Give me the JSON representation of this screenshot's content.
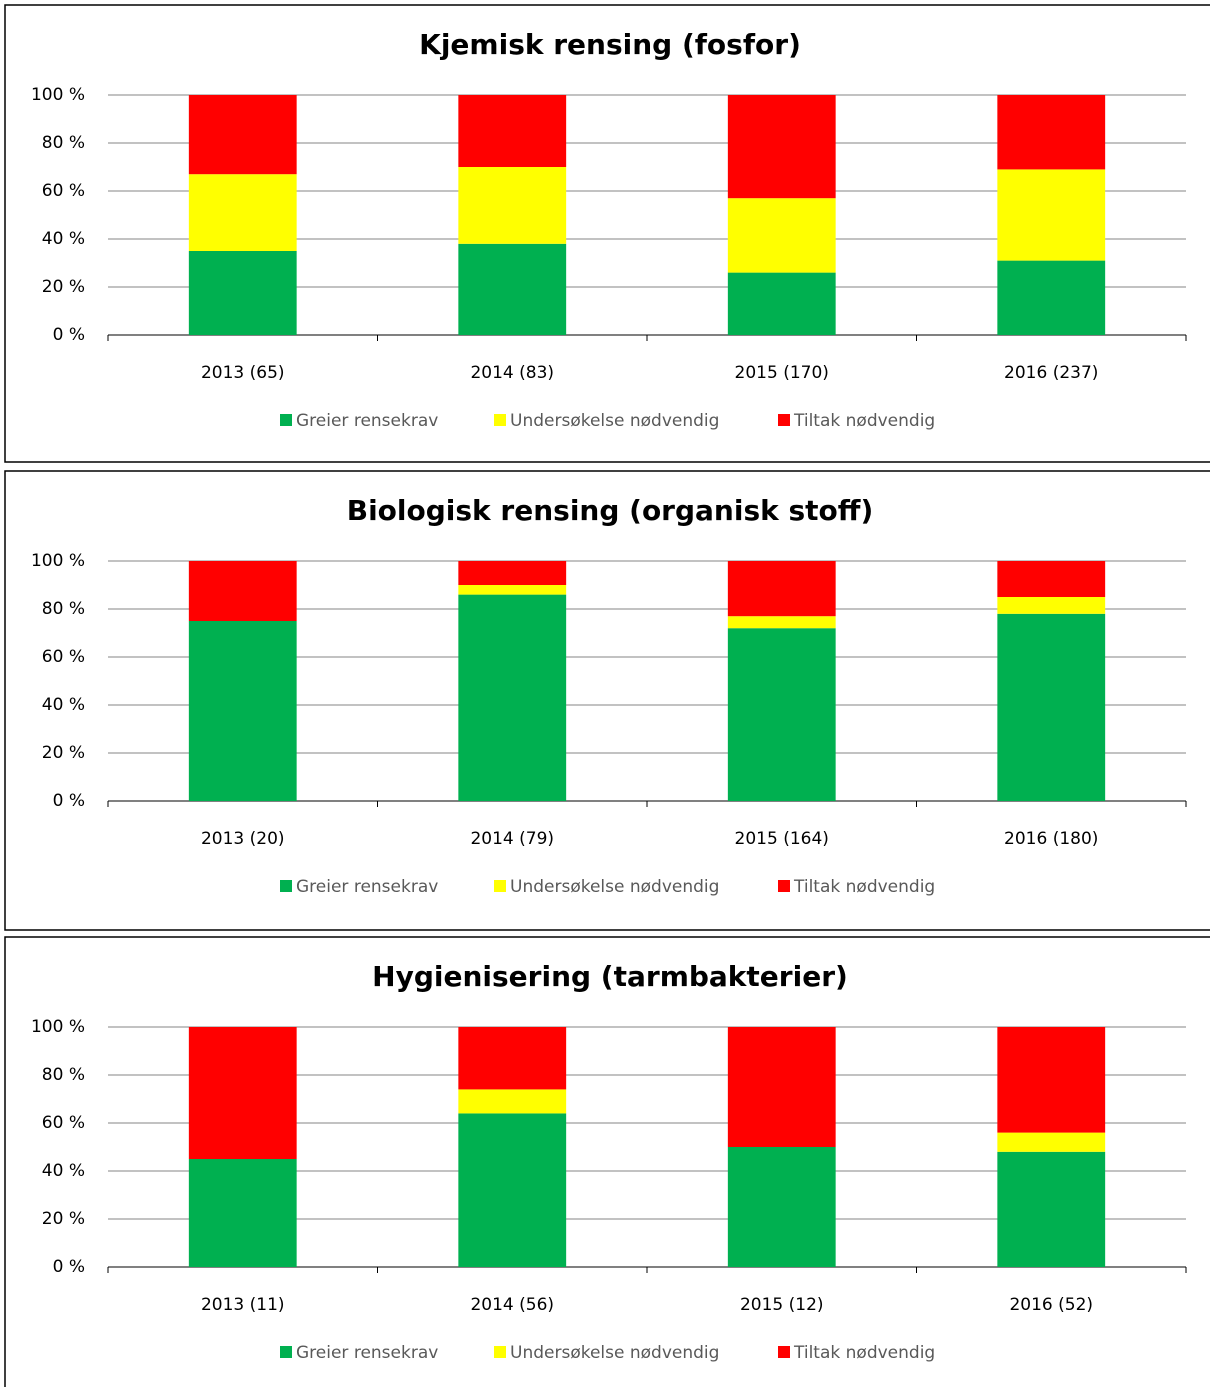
{
  "chart_data": [
    {
      "type": "bar",
      "stacked": true,
      "title": "Kjemisk rensing (fosfor)",
      "categories": [
        "2013 (65)",
        "2014 (83)",
        "2015 (170)",
        "2016 (237)"
      ],
      "series": [
        {
          "name": "Greier rensekrav",
          "color": "#00b050",
          "values": [
            35,
            38,
            26,
            31
          ]
        },
        {
          "name": "Undersøkelse nødvendig",
          "color": "#ffff00",
          "values": [
            32,
            32,
            31,
            38
          ]
        },
        {
          "name": "Tiltak nødvendig",
          "color": "#ff0000",
          "values": [
            33,
            30,
            43,
            31
          ]
        }
      ],
      "ylim": [
        0,
        100
      ],
      "yticks": [
        {
          "value": 0,
          "label": "0 %"
        },
        {
          "value": 20,
          "label": "20 %"
        },
        {
          "value": 40,
          "label": "40 %"
        },
        {
          "value": 60,
          "label": "60 %"
        },
        {
          "value": 80,
          "label": "80 %"
        },
        {
          "value": 100,
          "label": "100 %"
        }
      ],
      "grid": true,
      "legend": "bottom"
    },
    {
      "type": "bar",
      "stacked": true,
      "title": "Biologisk rensing (organisk stoff)",
      "categories": [
        "2013 (20)",
        "2014 (79)",
        "2015 (164)",
        "2016 (180)"
      ],
      "series": [
        {
          "name": "Greier rensekrav",
          "color": "#00b050",
          "values": [
            75,
            86,
            72,
            78
          ]
        },
        {
          "name": "Undersøkelse nødvendig",
          "color": "#ffff00",
          "values": [
            0,
            4,
            5,
            7
          ]
        },
        {
          "name": "Tiltak nødvendig",
          "color": "#ff0000",
          "values": [
            25,
            10,
            23,
            15
          ]
        }
      ],
      "ylim": [
        0,
        100
      ],
      "yticks": [
        {
          "value": 0,
          "label": "0 %"
        },
        {
          "value": 20,
          "label": "20 %"
        },
        {
          "value": 40,
          "label": "40 %"
        },
        {
          "value": 60,
          "label": "60 %"
        },
        {
          "value": 80,
          "label": "80 %"
        },
        {
          "value": 100,
          "label": "100 %"
        }
      ],
      "grid": true,
      "legend": "bottom"
    },
    {
      "type": "bar",
      "stacked": true,
      "title": "Hygienisering (tarmbakterier)",
      "categories": [
        "2013 (11)",
        "2014 (56)",
        "2015 (12)",
        "2016 (52)"
      ],
      "series": [
        {
          "name": "Greier rensekrav",
          "color": "#00b050",
          "values": [
            45,
            64,
            50,
            48
          ]
        },
        {
          "name": "Undersøkelse nødvendig",
          "color": "#ffff00",
          "values": [
            0,
            10,
            0,
            8
          ]
        },
        {
          "name": "Tiltak nødvendig",
          "color": "#ff0000",
          "values": [
            55,
            26,
            50,
            44
          ]
        }
      ],
      "ylim": [
        0,
        100
      ],
      "yticks": [
        {
          "value": 0,
          "label": "0 %"
        },
        {
          "value": 20,
          "label": "20 %"
        },
        {
          "value": 40,
          "label": "40 %"
        },
        {
          "value": 60,
          "label": "60 %"
        },
        {
          "value": 80,
          "label": "80 %"
        },
        {
          "value": 100,
          "label": "100 %"
        }
      ],
      "grid": true,
      "legend": "bottom"
    }
  ]
}
